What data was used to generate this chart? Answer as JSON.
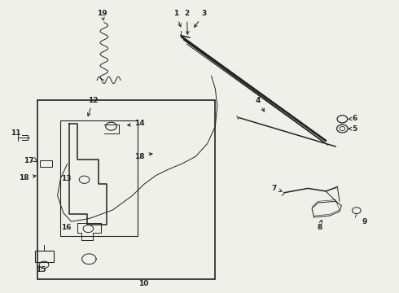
{
  "bg_color": "#f0f0eb",
  "line_color": "#222222",
  "fig_width": 4.9,
  "fig_height": 3.6,
  "dpi": 100
}
